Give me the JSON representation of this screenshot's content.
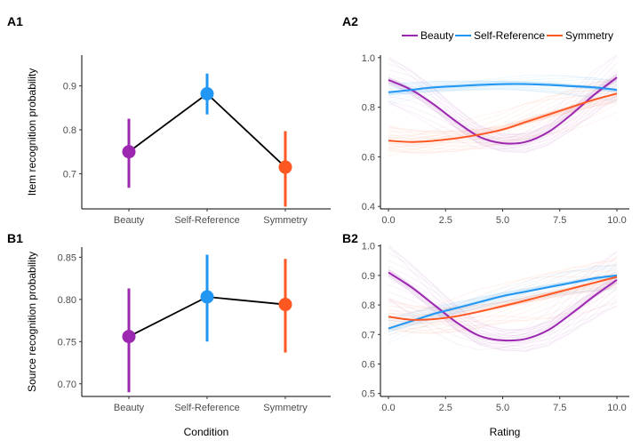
{
  "shared_xlabel_left": "Condition",
  "shared_xlabel_right": "Rating",
  "legend": {
    "entries": [
      "Beauty",
      "Self-Reference",
      "Symmetry"
    ],
    "colors": [
      "#9c27b0",
      "#2196f3",
      "#ff5722"
    ]
  },
  "chart_data": [
    {
      "panel": "A1",
      "type": "scatter",
      "ylabel": "Item recognition probability",
      "categories": [
        "Beauty",
        "Self-Reference",
        "Symmetry"
      ],
      "values": [
        0.75,
        0.882,
        0.715
      ],
      "ci_low": [
        0.668,
        0.835,
        0.625
      ],
      "ci_high": [
        0.825,
        0.928,
        0.797
      ],
      "ylim": [
        0.62,
        0.97
      ],
      "yticks": [
        "0.7",
        "0.8",
        "0.9"
      ],
      "colors": [
        "#9c27b0",
        "#2196f3",
        "#ff5722"
      ]
    },
    {
      "panel": "A2",
      "type": "line",
      "x": [
        0,
        1,
        2,
        3,
        4,
        5,
        6,
        7,
        8,
        9,
        10
      ],
      "xticks": [
        "0.0",
        "2.5",
        "5.0",
        "7.5",
        "10.0"
      ],
      "yticks": [
        "0.4",
        "0.6",
        "0.8",
        "1.0"
      ],
      "xlim": [
        0,
        10
      ],
      "ylim": [
        0.39,
        1.01
      ],
      "series": [
        {
          "name": "Beauty",
          "values": [
            0.91,
            0.87,
            0.81,
            0.74,
            0.68,
            0.655,
            0.66,
            0.7,
            0.77,
            0.85,
            0.92
          ]
        },
        {
          "name": "Self-Reference",
          "values": [
            0.86,
            0.87,
            0.88,
            0.885,
            0.89,
            0.893,
            0.893,
            0.89,
            0.885,
            0.88,
            0.87
          ]
        },
        {
          "name": "Symmetry",
          "values": [
            0.665,
            0.66,
            0.665,
            0.675,
            0.69,
            0.71,
            0.74,
            0.77,
            0.8,
            0.83,
            0.855
          ]
        }
      ]
    },
    {
      "panel": "B1",
      "type": "scatter",
      "ylabel": "Source recognition probability",
      "categories": [
        "Beauty",
        "Self-Reference",
        "Symmetry"
      ],
      "values": [
        0.756,
        0.803,
        0.794
      ],
      "ci_low": [
        0.69,
        0.75,
        0.737
      ],
      "ci_high": [
        0.813,
        0.853,
        0.848
      ],
      "ylim": [
        0.685,
        0.862
      ],
      "yticks": [
        "0.70",
        "0.75",
        "0.80",
        "0.85"
      ],
      "colors": [
        "#9c27b0",
        "#2196f3",
        "#ff5722"
      ]
    },
    {
      "panel": "B2",
      "type": "line",
      "x": [
        0,
        1,
        2,
        3,
        4,
        5,
        6,
        7,
        8,
        9,
        10
      ],
      "xticks": [
        "0.0",
        "2.5",
        "5.0",
        "7.5",
        "10.0"
      ],
      "yticks": [
        "0.5",
        "0.6",
        "0.7",
        "0.8",
        "0.9",
        "1.0"
      ],
      "xlim": [
        0,
        10
      ],
      "ylim": [
        0.49,
        1.005
      ],
      "series": [
        {
          "name": "Beauty",
          "values": [
            0.91,
            0.86,
            0.8,
            0.74,
            0.695,
            0.68,
            0.685,
            0.715,
            0.77,
            0.83,
            0.885
          ]
        },
        {
          "name": "Self-Reference",
          "values": [
            0.72,
            0.745,
            0.77,
            0.79,
            0.81,
            0.83,
            0.845,
            0.86,
            0.875,
            0.89,
            0.9
          ]
        },
        {
          "name": "Symmetry",
          "values": [
            0.76,
            0.75,
            0.752,
            0.762,
            0.778,
            0.796,
            0.815,
            0.835,
            0.855,
            0.875,
            0.895
          ]
        }
      ]
    }
  ]
}
